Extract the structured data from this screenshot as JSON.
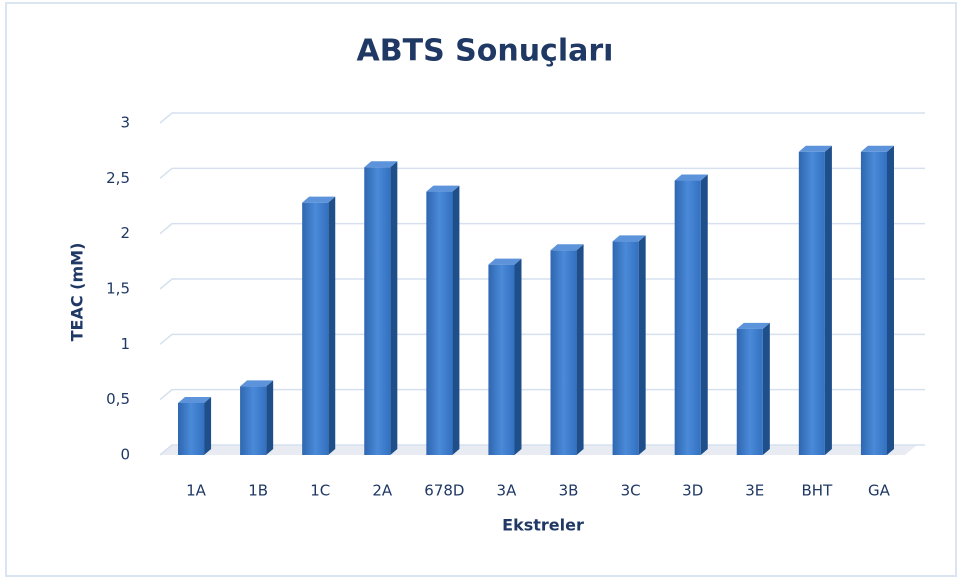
{
  "chart_data": {
    "type": "bar3d",
    "title": "ABTS Sonuçları",
    "x_label": "Ekstreler",
    "y_label": "TEAC (mM)",
    "categories": [
      "1A",
      "1B",
      "1C",
      "2A",
      "678D",
      "3A",
      "3B",
      "3C",
      "3D",
      "3E",
      "BHT",
      "GA"
    ],
    "values": [
      0.47,
      0.62,
      2.28,
      2.6,
      2.38,
      1.72,
      1.85,
      1.93,
      2.48,
      1.14,
      2.74,
      2.74
    ],
    "color": "#3a78c9",
    "ylim": [
      0,
      3
    ],
    "yticks": [
      0,
      {
        "value": 0.5,
        "label": "0,5"
      },
      1,
      {
        "value": 1.5,
        "label": "1,5"
      },
      2,
      {
        "value": 2.5,
        "label": "2,5"
      },
      3
    ],
    "grid": true
  }
}
